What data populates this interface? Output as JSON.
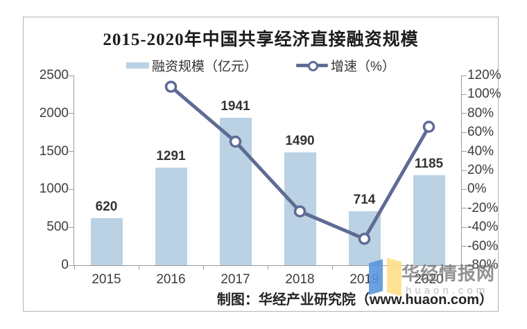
{
  "chart_data": {
    "type": "bar+line",
    "title": "2015-2020年中国共享经济直接融资规模",
    "categories": [
      "2015",
      "2016",
      "2017",
      "2018",
      "2019",
      "2020"
    ],
    "series": [
      {
        "name": "融资规模（亿元）",
        "type": "bar",
        "axis": "left",
        "color": "#bad2e3",
        "values": [
          620,
          1291,
          1941,
          1490,
          714,
          1185
        ],
        "value_labels_shown": true
      },
      {
        "name": "增速（%）",
        "type": "line",
        "axis": "right",
        "color": "#5f6b95",
        "marker": "white-circle",
        "values": [
          null,
          108.2,
          50.3,
          -23.2,
          -52.1,
          66.0
        ]
      }
    ],
    "left_axis": {
      "min": 0,
      "max": 2500,
      "step": 500
    },
    "right_axis": {
      "min": -80,
      "max": 120,
      "step": 20,
      "suffix": "%"
    },
    "grid": false,
    "legend_position": "top-center"
  },
  "footer": {
    "credit": "制图：华经产业研究院（www.huaon.com）"
  },
  "watermark": {
    "name": "华经情报网",
    "domain": "huaon.com",
    "logo_blue": "#5794de",
    "logo_yellow": "#ffe083"
  }
}
